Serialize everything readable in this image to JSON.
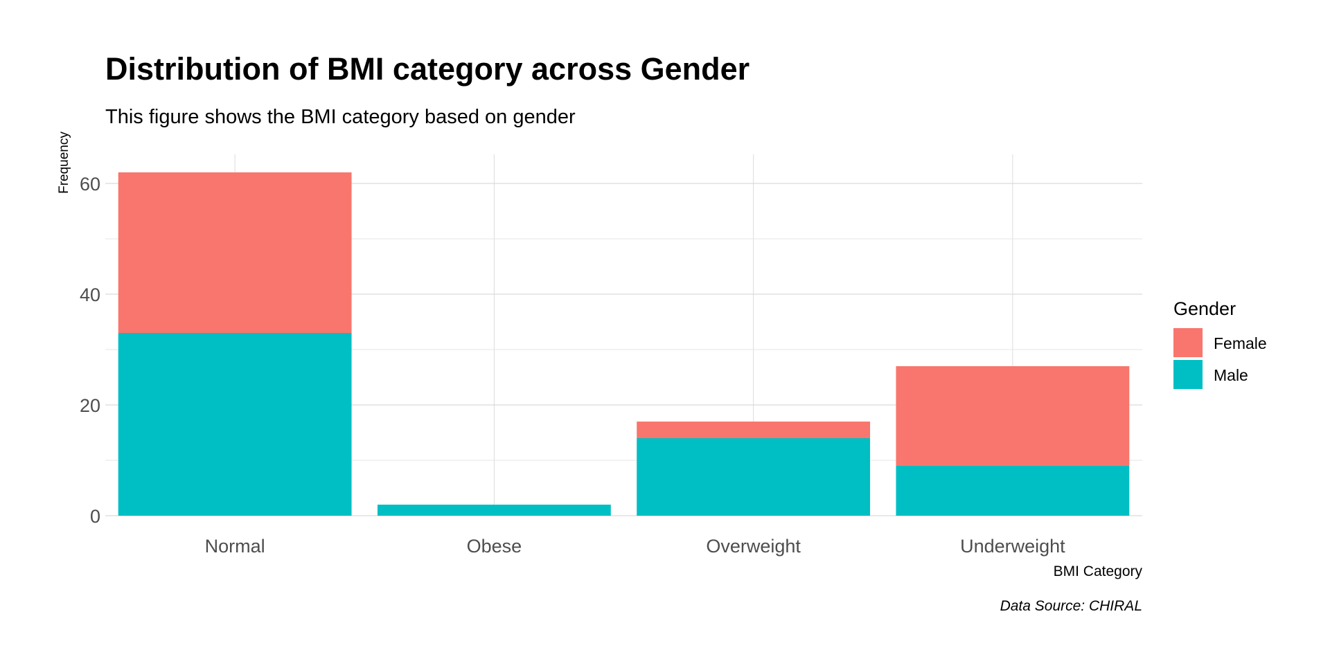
{
  "chart_data": {
    "type": "bar",
    "stacked": true,
    "title": "Distribution of BMI category across Gender",
    "subtitle": "This figure shows the BMI category based on gender",
    "xlabel": "BMI Category",
    "ylabel": "Frequency",
    "caption": "Data Source: CHIRAL",
    "categories": [
      "Normal",
      "Obese",
      "Overweight",
      "Underweight"
    ],
    "series": [
      {
        "name": "Male",
        "values": [
          33,
          2,
          14,
          9
        ],
        "color": "#00BFC4"
      },
      {
        "name": "Female",
        "values": [
          29,
          0,
          3,
          18
        ],
        "color": "#F8766D"
      }
    ],
    "ylim": [
      0,
      65
    ],
    "yticks": [
      0,
      20,
      40,
      60
    ],
    "grid": true,
    "legend": {
      "title": "Gender",
      "placement": "right",
      "entries": [
        {
          "label": "Female",
          "color": "#F8766D"
        },
        {
          "label": "Male",
          "color": "#00BFC4"
        }
      ]
    }
  }
}
